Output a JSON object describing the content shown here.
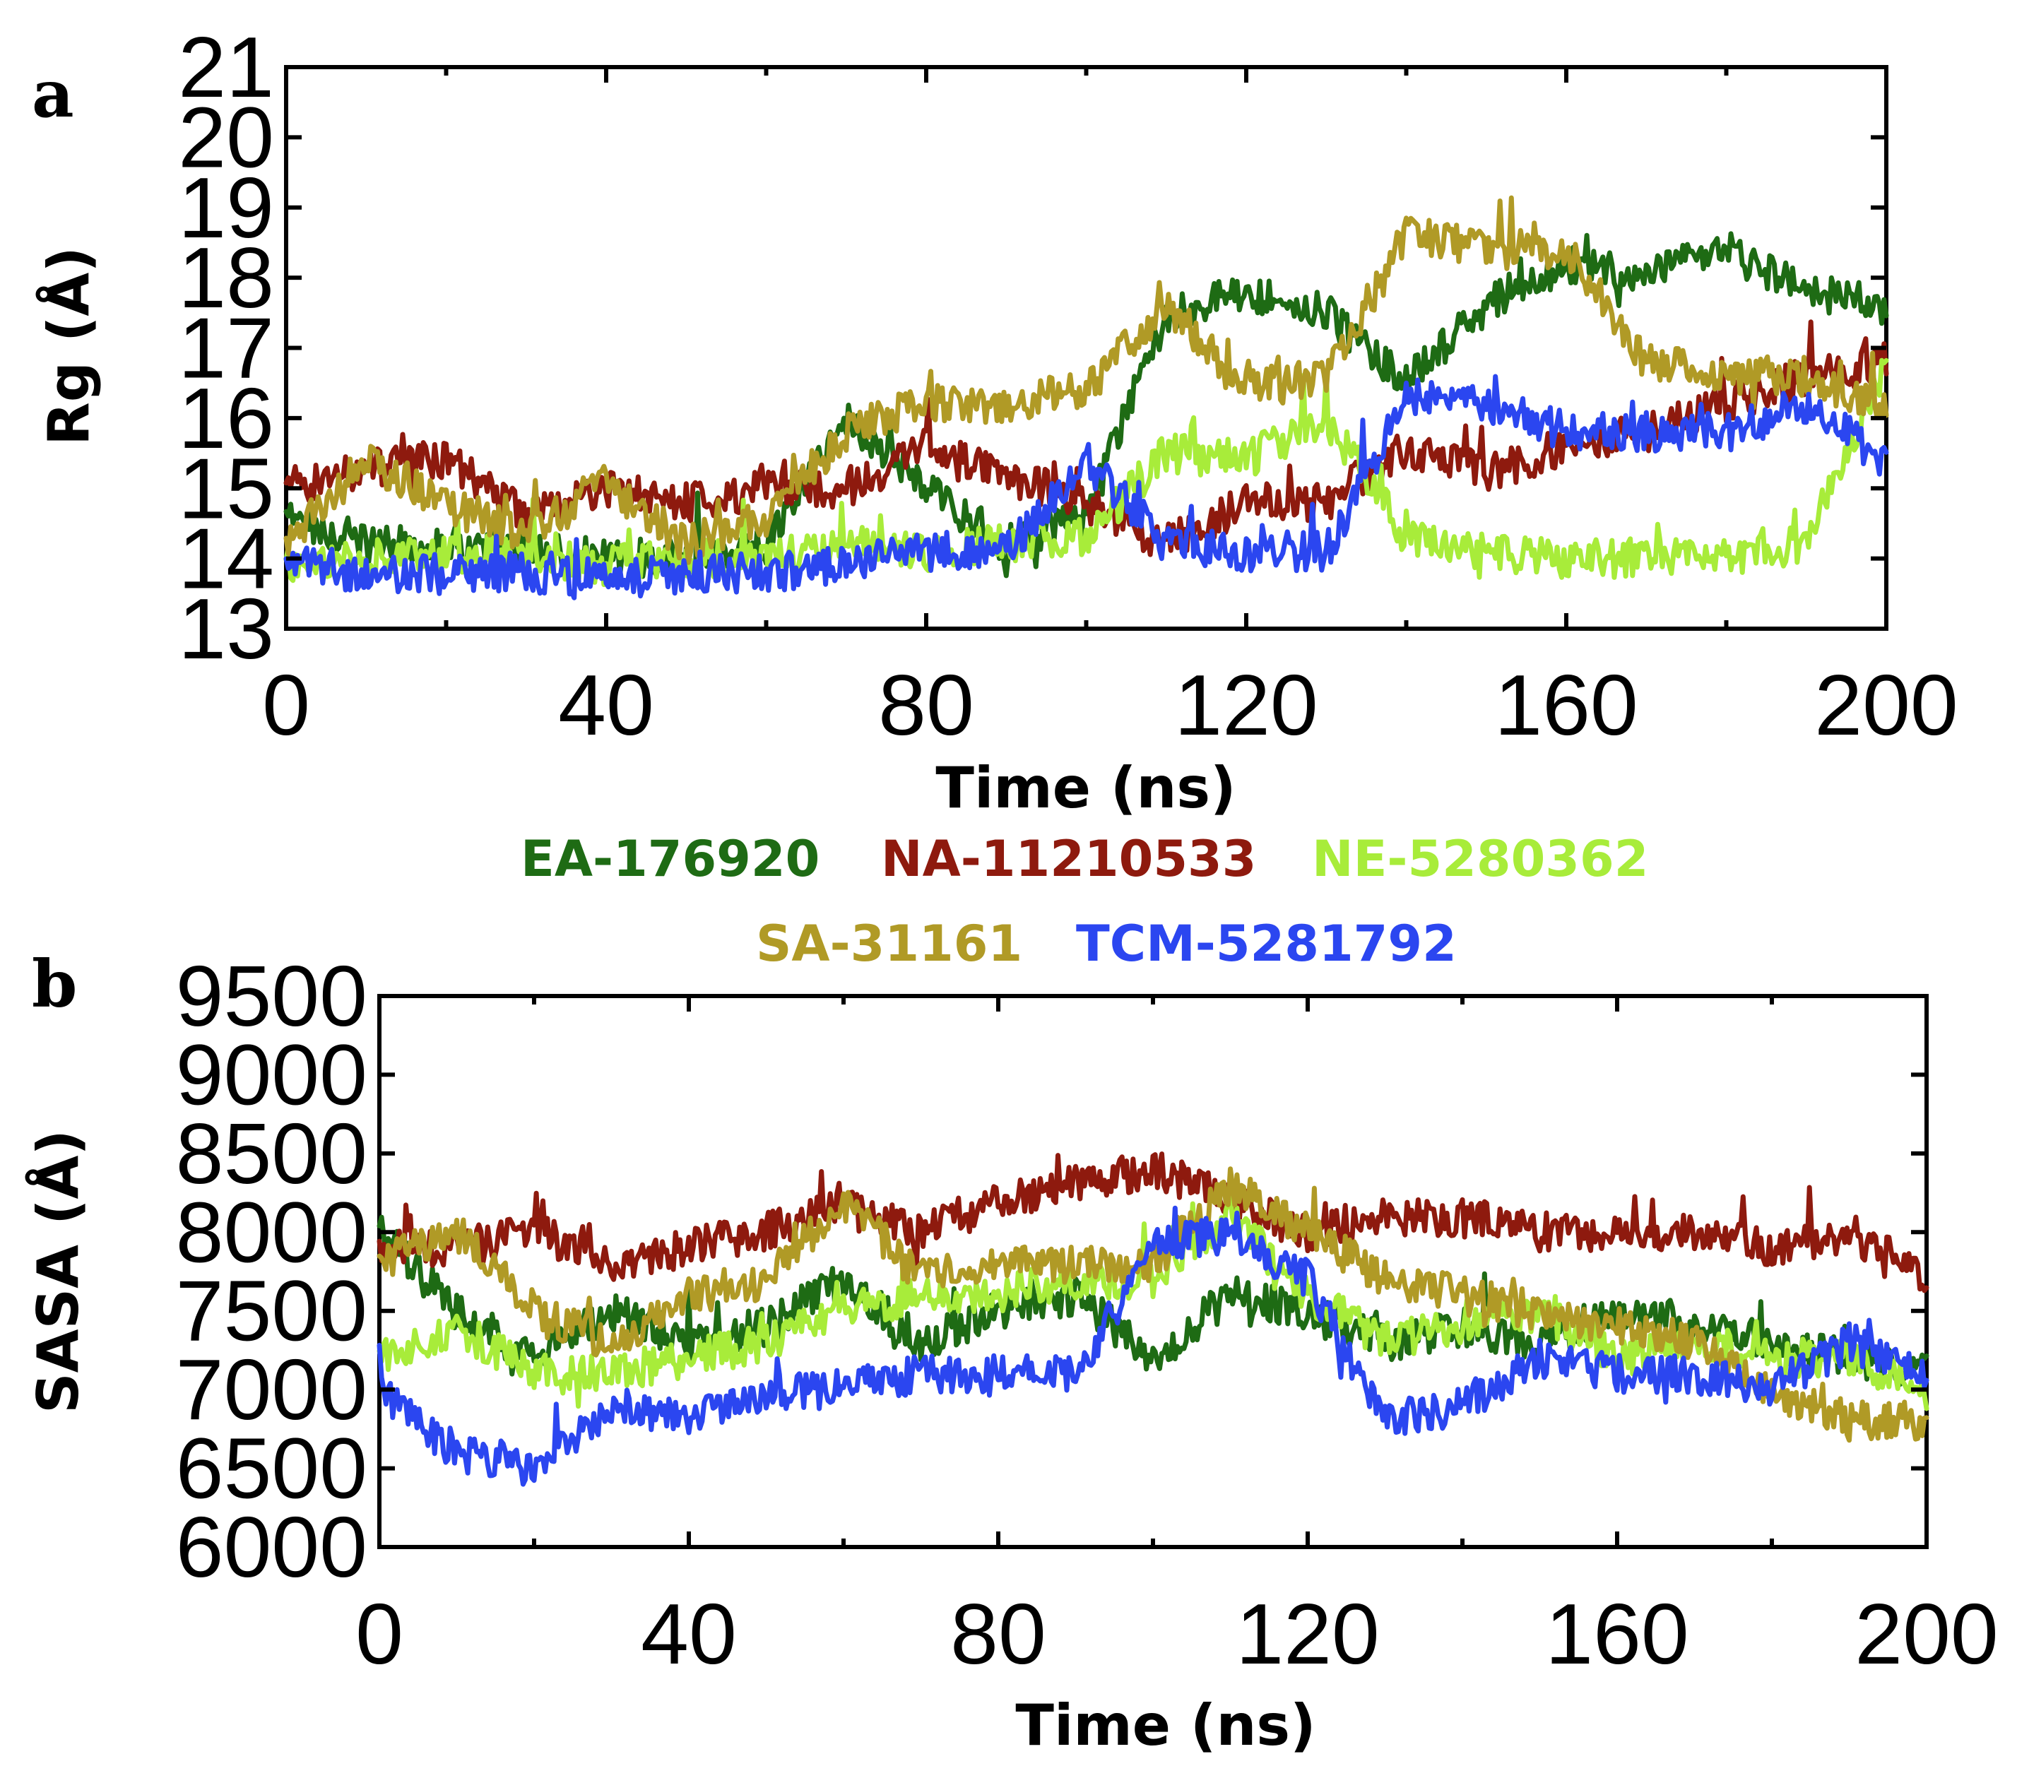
{
  "chart_data": [
    {
      "panel": "a",
      "type": "line",
      "title": "",
      "xlabel": "Time (ns)",
      "ylabel": "Rg (Å)",
      "xlim": [
        0,
        200
      ],
      "ylim": [
        13,
        21
      ],
      "xticks": [
        0,
        40,
        80,
        120,
        160,
        200
      ],
      "yticks": [
        13,
        14,
        15,
        16,
        17,
        18,
        19,
        20,
        21
      ],
      "x": [
        0,
        10,
        20,
        30,
        40,
        50,
        60,
        70,
        80,
        90,
        100,
        110,
        120,
        130,
        140,
        150,
        160,
        170,
        180,
        190,
        200
      ],
      "series": [
        {
          "name": "EA-176920",
          "values": [
            14.6,
            14.2,
            14.2,
            14.1,
            14.0,
            14.0,
            14.2,
            16.0,
            15.0,
            14.2,
            14.6,
            17.5,
            17.8,
            17.5,
            16.5,
            17.6,
            18.2,
            18.0,
            18.4,
            17.8,
            17.6
          ]
        },
        {
          "name": "NA-11210533",
          "values": [
            15.0,
            15.3,
            15.4,
            14.6,
            15.0,
            14.8,
            15.0,
            15.0,
            15.6,
            15.2,
            14.8,
            14.2,
            14.8,
            14.8,
            15.6,
            15.2,
            15.6,
            15.8,
            16.2,
            16.6,
            16.8
          ]
        },
        {
          "name": "NE-5280362",
          "values": [
            13.9,
            14.0,
            14.1,
            14.0,
            13.9,
            14.0,
            14.0,
            14.2,
            14.1,
            14.2,
            14.3,
            15.5,
            15.4,
            16.0,
            14.3,
            14.1,
            14.0,
            14.0,
            14.0,
            14.2,
            16.8
          ]
        },
        {
          "name": "SA-31161",
          "values": [
            14.2,
            15.4,
            14.8,
            14.3,
            15.1,
            14.2,
            14.6,
            15.8,
            16.2,
            16.2,
            16.4,
            17.6,
            16.4,
            16.6,
            18.6,
            18.4,
            18.4,
            16.8,
            16.6,
            16.6,
            16.2
          ]
        },
        {
          "name": "TCM-5281792",
          "values": [
            13.9,
            13.8,
            13.8,
            13.8,
            13.7,
            13.8,
            13.8,
            13.9,
            14.1,
            14.1,
            15.4,
            14.2,
            14.1,
            14.1,
            16.3,
            16.2,
            15.8,
            15.8,
            15.8,
            16.2,
            15.4
          ]
        }
      ]
    },
    {
      "panel": "b",
      "type": "line",
      "title": "",
      "xlabel": "Time (ns)",
      "ylabel": "SASA (Å)",
      "xlim": [
        0,
        200
      ],
      "ylim": [
        6000,
        9500
      ],
      "xticks": [
        0,
        40,
        80,
        120,
        160,
        200
      ],
      "yticks": [
        6000,
        6500,
        7000,
        7500,
        8000,
        8500,
        9000,
        9500
      ],
      "x": [
        0,
        10,
        20,
        30,
        40,
        50,
        60,
        70,
        80,
        90,
        100,
        110,
        120,
        130,
        140,
        150,
        160,
        170,
        180,
        190,
        200
      ],
      "series": [
        {
          "name": "EA-176920",
          "values": [
            8000,
            7500,
            7200,
            7500,
            7300,
            7400,
            7700,
            7300,
            7500,
            7600,
            7200,
            7600,
            7500,
            7300,
            7400,
            7300,
            7500,
            7400,
            7300,
            7200,
            7100
          ]
        },
        {
          "name": "NA-11210533",
          "values": [
            7900,
            7900,
            8000,
            7800,
            7900,
            8000,
            8200,
            8000,
            8200,
            8300,
            8400,
            8200,
            8000,
            8100,
            8100,
            8000,
            8000,
            8000,
            7900,
            8000,
            7700
          ]
        },
        {
          "name": "NE-5280362",
          "values": [
            7200,
            7400,
            7100,
            7100,
            7200,
            7300,
            7500,
            7600,
            7600,
            7700,
            7700,
            8100,
            7600,
            7300,
            7400,
            7500,
            7200,
            7300,
            7200,
            7200,
            7000
          ]
        },
        {
          "name": "SA-31161",
          "values": [
            7800,
            8000,
            7500,
            7300,
            7600,
            7700,
            8200,
            7700,
            7800,
            7800,
            7800,
            8300,
            8000,
            7700,
            7600,
            7500,
            7400,
            7300,
            7000,
            6800,
            6800
          ]
        },
        {
          "name": "TCM-5281792",
          "values": [
            7000,
            6600,
            6500,
            6900,
            6800,
            7000,
            7000,
            7100,
            7100,
            7100,
            7900,
            8000,
            7700,
            6800,
            6900,
            7200,
            7100,
            7100,
            7000,
            7300,
            7100
          ]
        }
      ]
    }
  ],
  "panels": {
    "a": {
      "label": "a"
    },
    "b": {
      "label": "b"
    }
  },
  "legend": {
    "placement": "between-panels",
    "entries": [
      {
        "name": "EA-176920",
        "color": "#1e6b14"
      },
      {
        "name": "NA-11210533",
        "color": "#8e1a0e"
      },
      {
        "name": "NE-5280362",
        "color": "#a8ec3a"
      },
      {
        "name": "SA-31161",
        "color": "#b09a26"
      },
      {
        "name": "TCM-5281792",
        "color": "#2b46f0"
      }
    ]
  },
  "colors": {
    "EA-176920": "#1e6b14",
    "NA-11210533": "#8e1a0e",
    "NE-5280362": "#a8ec3a",
    "SA-31161": "#b09a26",
    "TCM-5281792": "#2b46f0"
  }
}
